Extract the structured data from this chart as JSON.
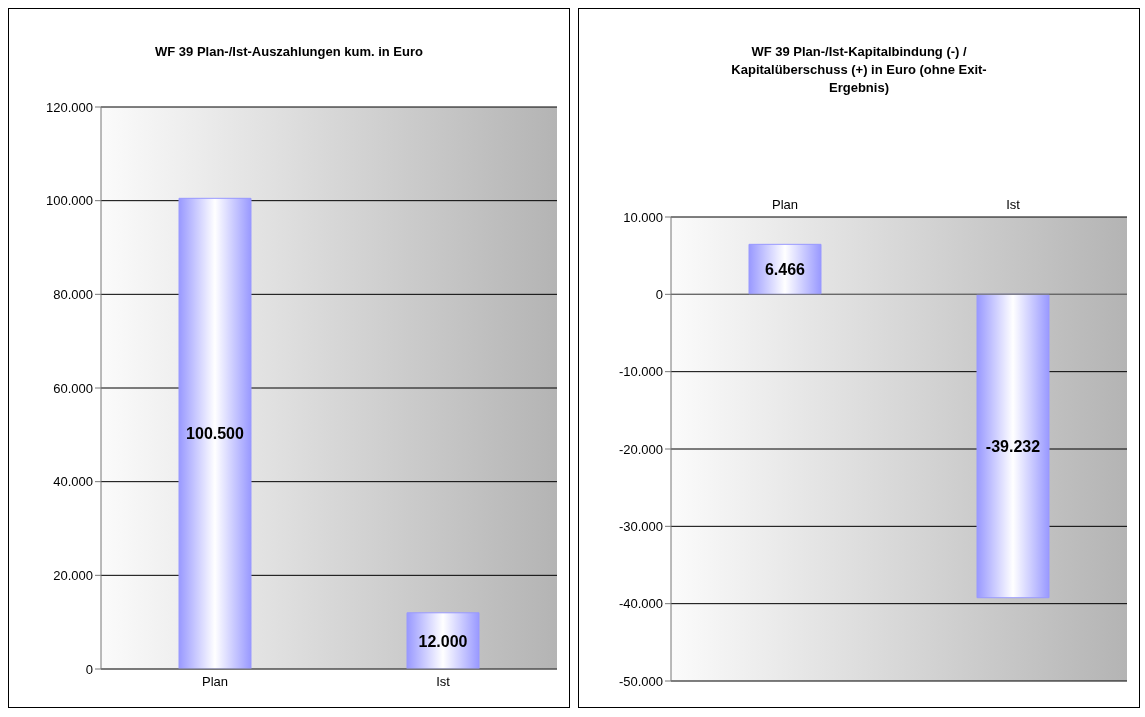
{
  "chart_data": [
    {
      "type": "bar",
      "title": "WF 39 Plan-/Ist-Auszahlungen kum. in Euro",
      "categories": [
        "Plan",
        "Ist"
      ],
      "values": [
        100500,
        12000
      ],
      "value_labels": [
        "100.500",
        "12.000"
      ],
      "color": "#9999ff",
      "ylim": [
        0,
        120000
      ],
      "yticks": [
        0,
        {
          "value": 20000,
          "label": "20.000"
        },
        {
          "value": 40000,
          "label": "40.000"
        },
        {
          "value": 60000,
          "label": "60.000"
        },
        {
          "value": 80000,
          "label": "80.000"
        },
        {
          "value": 100000,
          "label": "100.000"
        },
        {
          "value": 120000,
          "label": "120.000"
        }
      ],
      "grid": "y"
    },
    {
      "type": "bar",
      "title": "WF 39 Plan-/Ist-Kapitalbindung (-) / Kapitalüberschuss (+) in Euro (ohne Exit-Ergebnis)",
      "categories": [
        "Plan",
        "Ist"
      ],
      "values": [
        6466,
        -39232
      ],
      "value_labels": [
        "6.466",
        "-39.232"
      ],
      "color": "#9999ff",
      "ylim": [
        -50000,
        10000
      ],
      "yticks": [
        {
          "value": -50000,
          "label": "-50.000"
        },
        {
          "value": -40000,
          "label": "-40.000"
        },
        {
          "value": -30000,
          "label": "-30.000"
        },
        {
          "value": -20000,
          "label": "-20.000"
        },
        {
          "value": -10000,
          "label": "-10.000"
        },
        0,
        {
          "value": 10000,
          "label": "10.000"
        }
      ],
      "grid": "y"
    }
  ]
}
